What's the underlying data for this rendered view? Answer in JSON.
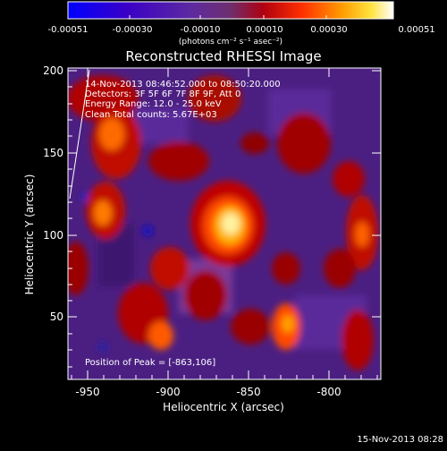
{
  "colorbar": {
    "tick_labels": [
      "-0.00051",
      "-0.00030",
      "-0.00010",
      "0.00010",
      "0.00030",
      "0.00051"
    ],
    "unit_label": "(photons cm⁻² s⁻¹ asec⁻²)",
    "colors": [
      "#0000ff",
      "#3b00c8",
      "#5a1aa8",
      "#6b2e9a",
      "#8a1d3a",
      "#c00000",
      "#ff3a00",
      "#ff9a00",
      "#ffe040",
      "#ffffff"
    ]
  },
  "plot": {
    "title": "Reconstructed RHESSI Image",
    "info_lines": [
      "14-Nov-2013 08:46:52.000 to 08:50:20.000",
      "Detectors: 3F 5F 6F 7F 8F 9F, Att 0",
      "Energy Range: 12.0 - 25.0 keV",
      "Clean    Total counts: 5.67E+03"
    ],
    "peak_label": "Position of Peak = [-863,106]",
    "x_axis": {
      "label": "Heliocentric X (arcsec)",
      "ticks": [
        "-950",
        "-900",
        "-850",
        "-800"
      ]
    },
    "y_axis": {
      "label": "Heliocentric Y (arcsec)",
      "ticks": [
        "200",
        "150",
        "100",
        "50"
      ]
    }
  },
  "footer": {
    "timestamp": "15-Nov-2013 08:28"
  }
}
